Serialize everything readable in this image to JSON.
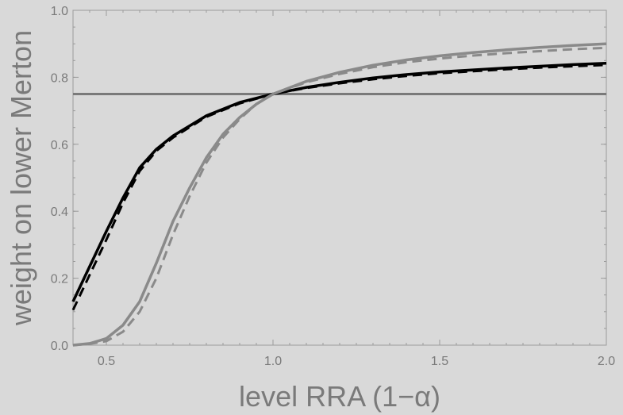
{
  "chart_data": {
    "type": "line",
    "title": "",
    "xlabel": "level RRA (1−α)",
    "ylabel": "weight on lower Merton",
    "xlim": [
      0.4,
      2.0
    ],
    "ylim": [
      0.0,
      1.0
    ],
    "xticks": [
      0.5,
      1.0,
      1.5,
      2.0
    ],
    "xtick_labels": [
      "0.5",
      "1.0",
      "1.5",
      "2.0"
    ],
    "yticks": [
      0.0,
      0.2,
      0.4,
      0.6,
      0.8,
      1.0
    ],
    "ytick_labels": [
      "0.0",
      "0.2",
      "0.4",
      "0.6",
      "0.8",
      "1.0"
    ],
    "grid": false,
    "series": [
      {
        "color": "#7a7a7a",
        "style": "solid",
        "width": 3,
        "points": [
          [
            0.4,
            0.75
          ],
          [
            2.0,
            0.75
          ]
        ]
      },
      {
        "color": "#000000",
        "style": "solid",
        "width": 3.5,
        "points": [
          [
            0.4,
            0.13
          ],
          [
            0.45,
            0.235
          ],
          [
            0.5,
            0.34
          ],
          [
            0.55,
            0.44
          ],
          [
            0.6,
            0.53
          ],
          [
            0.65,
            0.585
          ],
          [
            0.7,
            0.625
          ],
          [
            0.8,
            0.685
          ],
          [
            0.9,
            0.725
          ],
          [
            1.0,
            0.75
          ],
          [
            1.1,
            0.77
          ],
          [
            1.2,
            0.785
          ],
          [
            1.3,
            0.798
          ],
          [
            1.4,
            0.808
          ],
          [
            1.5,
            0.816
          ],
          [
            1.6,
            0.822
          ],
          [
            1.7,
            0.828
          ],
          [
            1.8,
            0.833
          ],
          [
            1.9,
            0.838
          ],
          [
            2.0,
            0.842
          ]
        ]
      },
      {
        "color": "#000000",
        "style": "dashed",
        "width": 3,
        "points": [
          [
            0.4,
            0.105
          ],
          [
            0.45,
            0.21
          ],
          [
            0.5,
            0.315
          ],
          [
            0.55,
            0.425
          ],
          [
            0.6,
            0.52
          ],
          [
            0.65,
            0.58
          ],
          [
            0.7,
            0.62
          ],
          [
            0.8,
            0.682
          ],
          [
            0.9,
            0.722
          ],
          [
            1.0,
            0.75
          ],
          [
            1.1,
            0.768
          ],
          [
            1.2,
            0.782
          ],
          [
            1.3,
            0.794
          ],
          [
            1.4,
            0.804
          ],
          [
            1.5,
            0.812
          ],
          [
            1.6,
            0.818
          ],
          [
            1.7,
            0.824
          ],
          [
            1.8,
            0.829
          ],
          [
            1.9,
            0.833
          ],
          [
            2.0,
            0.837
          ]
        ]
      },
      {
        "color": "#8a8a8a",
        "style": "solid",
        "width": 3.5,
        "points": [
          [
            0.4,
            0.0
          ],
          [
            0.45,
            0.005
          ],
          [
            0.5,
            0.02
          ],
          [
            0.55,
            0.06
          ],
          [
            0.6,
            0.13
          ],
          [
            0.65,
            0.245
          ],
          [
            0.7,
            0.37
          ],
          [
            0.75,
            0.47
          ],
          [
            0.8,
            0.56
          ],
          [
            0.85,
            0.63
          ],
          [
            0.9,
            0.68
          ],
          [
            0.95,
            0.72
          ],
          [
            1.0,
            0.75
          ],
          [
            1.1,
            0.788
          ],
          [
            1.2,
            0.815
          ],
          [
            1.3,
            0.836
          ],
          [
            1.4,
            0.852
          ],
          [
            1.5,
            0.864
          ],
          [
            1.6,
            0.874
          ],
          [
            1.7,
            0.882
          ],
          [
            1.8,
            0.889
          ],
          [
            1.9,
            0.895
          ],
          [
            2.0,
            0.9
          ]
        ]
      },
      {
        "color": "#8a8a8a",
        "style": "dashed",
        "width": 3,
        "points": [
          [
            0.4,
            0.0
          ],
          [
            0.45,
            0.004
          ],
          [
            0.5,
            0.012
          ],
          [
            0.55,
            0.04
          ],
          [
            0.6,
            0.1
          ],
          [
            0.65,
            0.2
          ],
          [
            0.7,
            0.33
          ],
          [
            0.75,
            0.445
          ],
          [
            0.8,
            0.545
          ],
          [
            0.85,
            0.62
          ],
          [
            0.9,
            0.675
          ],
          [
            0.95,
            0.72
          ],
          [
            1.0,
            0.75
          ],
          [
            1.1,
            0.785
          ],
          [
            1.2,
            0.81
          ],
          [
            1.3,
            0.83
          ],
          [
            1.4,
            0.845
          ],
          [
            1.5,
            0.856
          ],
          [
            1.6,
            0.865
          ],
          [
            1.7,
            0.872
          ],
          [
            1.8,
            0.878
          ],
          [
            1.9,
            0.884
          ],
          [
            2.0,
            0.888
          ]
        ]
      }
    ]
  }
}
